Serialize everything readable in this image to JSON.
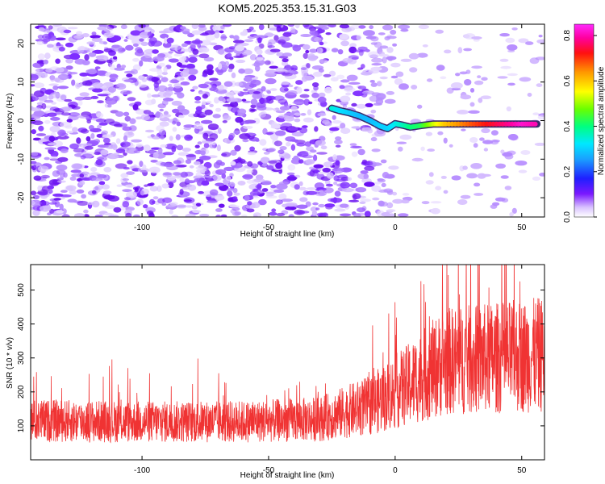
{
  "title": "KOM5.2025.353.15.31.G03",
  "chart_data": [
    {
      "type": "heatmap",
      "name": "spectrogram",
      "xlabel": "Height of straight line (km)",
      "ylabel": "Frequency (Hz)",
      "xlim": [
        -144,
        59
      ],
      "ylim": [
        -25,
        25
      ],
      "xticks": [
        -100,
        -50,
        0,
        50
      ],
      "yticks": [
        -20,
        -10,
        0,
        10,
        20
      ],
      "xtick_labels": [
        "-100",
        "-50",
        "0",
        "50"
      ],
      "ytick_labels": [
        "-20",
        "-10",
        "0",
        "10",
        "20"
      ],
      "colorbar": {
        "label": "Normalized spectral amplitude",
        "range": [
          0.0,
          0.85
        ],
        "ticks": [
          0.0,
          0.2,
          0.4,
          0.6,
          0.8
        ],
        "tick_labels": [
          "0.0",
          "0.2",
          "0.4",
          "0.6",
          "0.8"
        ]
      },
      "signal_trace": {
        "x": [
          -25,
          -22,
          -18,
          -14,
          -10,
          -6,
          -3,
          0,
          3,
          6,
          10,
          15,
          20,
          30,
          40,
          50,
          56
        ],
        "y": [
          3.2,
          2.6,
          2.0,
          1.2,
          0.0,
          -1.4,
          -2.1,
          -0.8,
          -1.2,
          -1.7,
          -1.3,
          -0.9,
          -0.9,
          -0.9,
          -0.9,
          -0.9,
          -0.9
        ],
        "amp": [
          0.35,
          0.32,
          0.3,
          0.28,
          0.28,
          0.3,
          0.3,
          0.33,
          0.36,
          0.4,
          0.42,
          0.52,
          0.6,
          0.68,
          0.75,
          0.82,
          0.8
        ]
      }
    },
    {
      "type": "line",
      "name": "snr",
      "xlabel": "Height of straight line (km)",
      "ylabel": "SNR (10 * v/v)",
      "xlim": [
        -144,
        59
      ],
      "ylim": [
        0,
        575
      ],
      "xticks": [
        -100,
        -50,
        0,
        50
      ],
      "yticks": [
        100,
        200,
        300,
        400,
        500
      ],
      "xtick_labels": [
        "-100",
        "-50",
        "0",
        "50"
      ],
      "ytick_labels": [
        "100",
        "200",
        "300",
        "400",
        "500"
      ],
      "series": [
        {
          "name": "SNR",
          "color": "#f03333",
          "trend_x": [
            -144,
            -100,
            -60,
            -30,
            -10,
            5,
            20,
            40,
            59
          ],
          "trend_y": [
            115,
            112,
            112,
            120,
            160,
            220,
            290,
            300,
            310
          ]
        }
      ]
    }
  ]
}
